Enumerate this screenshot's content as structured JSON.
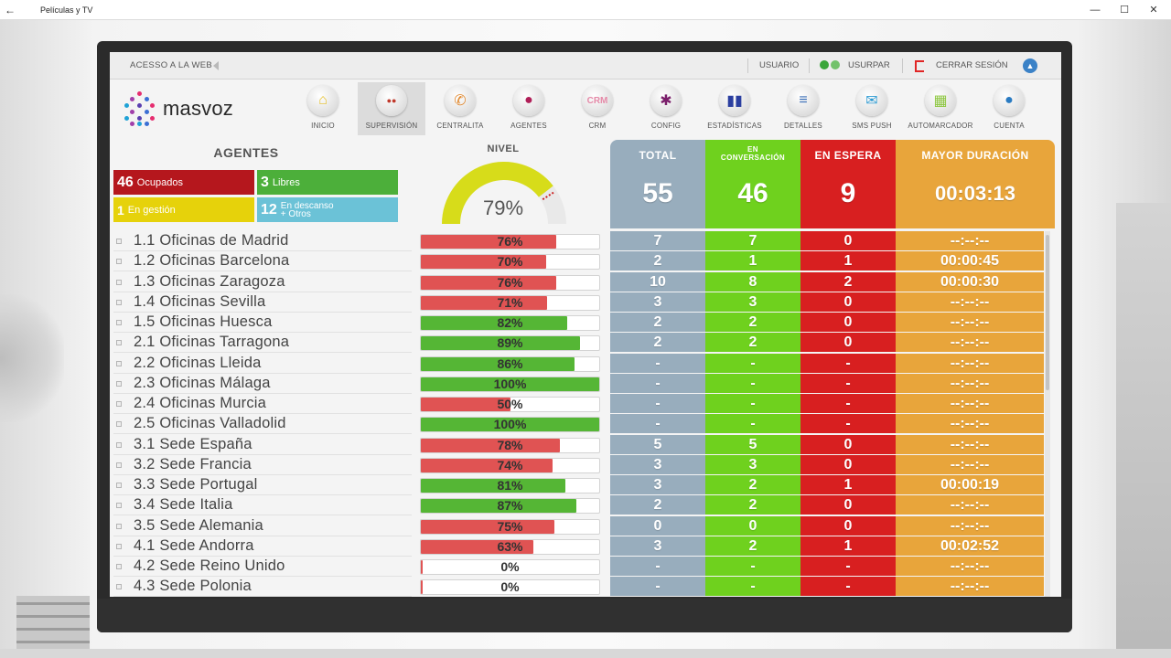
{
  "window": {
    "title": "Películas y TV"
  },
  "topbar": {
    "web": "ACESSO A LA WEB",
    "usuario": "USUARIO",
    "usurpar": "USURPAR",
    "cerrar": "CERRAR SESIÓN"
  },
  "brand": {
    "name": "masvoz"
  },
  "nav": [
    {
      "label": "INICIO",
      "icon": "home-icon",
      "color": "#e7c12b",
      "active": false
    },
    {
      "label": "SUPERVISIÓN",
      "icon": "users-icon",
      "color": "#c0392b",
      "active": true
    },
    {
      "label": "CENTRALITA",
      "icon": "phone-icon",
      "color": "#e2892f",
      "active": false
    },
    {
      "label": "AGENTES",
      "icon": "agent-icon",
      "color": "#b01f58",
      "active": false
    },
    {
      "label": "CRM",
      "icon": "crm-icon",
      "color": "#e58aa8",
      "active": false
    },
    {
      "label": "CONFIG",
      "icon": "gear-icon",
      "color": "#7b1f6b",
      "active": false
    },
    {
      "label": "ESTADÍSTICAS",
      "icon": "stats-icon",
      "color": "#2b3fa0",
      "active": false
    },
    {
      "label": "DETALLES",
      "icon": "list-icon",
      "color": "#3b6fb7",
      "active": false
    },
    {
      "label": "SMS PUSH",
      "icon": "sms-icon",
      "color": "#2d9bd3",
      "active": false
    },
    {
      "label": "AUTOMARCADOR",
      "icon": "grid-icon",
      "color": "#8cc63f",
      "active": false
    },
    {
      "label": "CUENTA",
      "icon": "account-icon",
      "color": "#2a7bc2",
      "active": false
    }
  ],
  "agents": {
    "title": "AGENTES",
    "ocupados": {
      "n": "46",
      "label": "Ocupados"
    },
    "libres": {
      "n": "3",
      "label": "Libres"
    },
    "gestion": {
      "n": "1",
      "label": "En gestión"
    },
    "descanso": {
      "n": "12",
      "label1": "En descanso",
      "label2": "+ Otros"
    }
  },
  "nivel": {
    "title": "NIVEL",
    "value": "79%",
    "fraction": 0.79
  },
  "stats": {
    "total": {
      "label": "TOTAL",
      "value": "55"
    },
    "conv": {
      "label1": "EN",
      "label2": "CONVERSACIÓN",
      "value": "46"
    },
    "wait": {
      "label": "EN ESPERA",
      "value": "9"
    },
    "max": {
      "label": "MAYOR DURACIÓN",
      "value": "00:03:13"
    }
  },
  "colors": {
    "good": "#55b635",
    "bad": "#e05353",
    "total": "#98adbd",
    "conv": "#6fd11e",
    "wait": "#d81f20",
    "max": "#e8a53b"
  },
  "rows": [
    {
      "name": "1.1 Oficinas de Madrid",
      "pct": "76%",
      "level": 76,
      "total": "7",
      "conv": "7",
      "wait": "0",
      "max": "--:--:--"
    },
    {
      "name": "1.2 Oficinas Barcelona",
      "pct": "70%",
      "level": 70,
      "total": "2",
      "conv": "1",
      "wait": "1",
      "max": "00:00:45"
    },
    {
      "name": "1.3 Oficinas Zaragoza",
      "pct": "76%",
      "level": 76,
      "total": "10",
      "conv": "8",
      "wait": "2",
      "max": "00:00:30"
    },
    {
      "name": "1.4 Oficinas Sevilla",
      "pct": "71%",
      "level": 71,
      "total": "3",
      "conv": "3",
      "wait": "0",
      "max": "--:--:--"
    },
    {
      "name": "1.5 Oficinas Huesca",
      "pct": "82%",
      "level": 82,
      "total": "2",
      "conv": "2",
      "wait": "0",
      "max": "--:--:--"
    },
    {
      "name": "2.1 Oficinas Tarragona",
      "pct": "89%",
      "level": 89,
      "total": "2",
      "conv": "2",
      "wait": "0",
      "max": "--:--:--"
    },
    {
      "name": "2.2 Oficinas Lleida",
      "pct": "86%",
      "level": 86,
      "total": "-",
      "conv": "-",
      "wait": "-",
      "max": "--:--:--"
    },
    {
      "name": "2.3 Oficinas Málaga",
      "pct": "100%",
      "level": 100,
      "total": "-",
      "conv": "-",
      "wait": "-",
      "max": "--:--:--"
    },
    {
      "name": "2.4 Oficinas Murcia",
      "pct": "50%",
      "level": 50,
      "total": "-",
      "conv": "-",
      "wait": "-",
      "max": "--:--:--"
    },
    {
      "name": "2.5 Oficinas Valladolid",
      "pct": "100%",
      "level": 100,
      "total": "-",
      "conv": "-",
      "wait": "-",
      "max": "--:--:--"
    },
    {
      "name": "3.1 Sede España",
      "pct": "78%",
      "level": 78,
      "total": "5",
      "conv": "5",
      "wait": "0",
      "max": "--:--:--"
    },
    {
      "name": "3.2 Sede Francia",
      "pct": "74%",
      "level": 74,
      "total": "3",
      "conv": "3",
      "wait": "0",
      "max": "--:--:--"
    },
    {
      "name": "3.3 Sede Portugal",
      "pct": "81%",
      "level": 81,
      "total": "3",
      "conv": "2",
      "wait": "1",
      "max": "00:00:19"
    },
    {
      "name": "3.4 Sede Italia",
      "pct": "87%",
      "level": 87,
      "total": "2",
      "conv": "2",
      "wait": "0",
      "max": "--:--:--"
    },
    {
      "name": "3.5 Sede Alemania",
      "pct": "75%",
      "level": 75,
      "total": "0",
      "conv": "0",
      "wait": "0",
      "max": "--:--:--"
    },
    {
      "name": "4.1 Sede Andorra",
      "pct": "63%",
      "level": 63,
      "total": "3",
      "conv": "2",
      "wait": "1",
      "max": "00:02:52"
    },
    {
      "name": "4.2 Sede Reino Unido",
      "pct": "0%",
      "level": 0,
      "total": "-",
      "conv": "-",
      "wait": "-",
      "max": "--:--:--"
    },
    {
      "name": "4.3 Sede Polonia",
      "pct": "0%",
      "level": 0,
      "total": "-",
      "conv": "-",
      "wait": "-",
      "max": "--:--:--"
    }
  ]
}
